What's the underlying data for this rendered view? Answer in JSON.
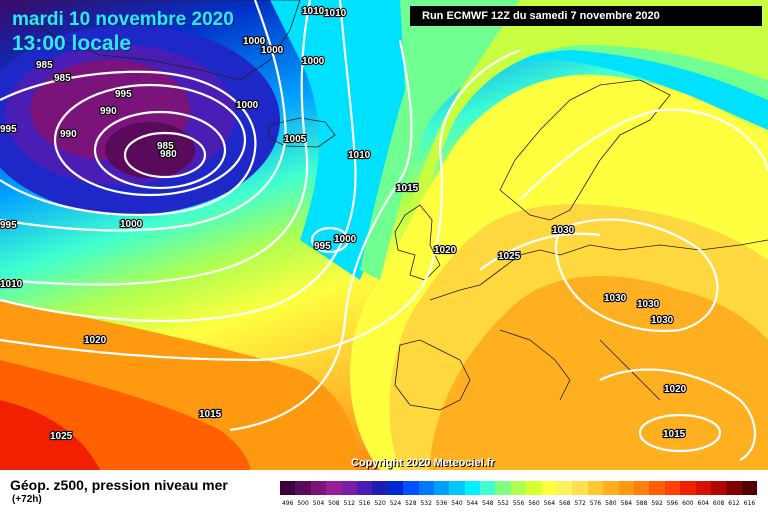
{
  "header": {
    "date_line": "mardi 10 novembre 2020",
    "time_line": "13:00 locale",
    "run_info": "Run ECMWF 12Z du samedi 7 novembre 2020"
  },
  "footer": {
    "copyright": "Copyright 2020 Meteociel.fr",
    "legend_title": "Géop. z500, pression niveau mer",
    "lead_time": "(+72h)"
  },
  "scale": {
    "values": [
      "496",
      "500",
      "504",
      "508",
      "512",
      "516",
      "520",
      "524",
      "528",
      "532",
      "536",
      "540",
      "544",
      "548",
      "552",
      "556",
      "560",
      "564",
      "568",
      "572",
      "576",
      "580",
      "584",
      "588",
      "592",
      "596",
      "600",
      "604",
      "608",
      "612",
      "616"
    ],
    "colors": [
      "#3a003a",
      "#5a0a5a",
      "#7a147a",
      "#961e96",
      "#7a1ea8",
      "#4a1eb4",
      "#1e1eb4",
      "#0028d2",
      "#0050ff",
      "#0078ff",
      "#00a0ff",
      "#00c8ff",
      "#00f0ff",
      "#40ffd0",
      "#80ff80",
      "#b0ff50",
      "#d8ff30",
      "#ffff40",
      "#fff060",
      "#ffe050",
      "#ffc830",
      "#ffb020",
      "#ff9a10",
      "#ff8010",
      "#ff6000",
      "#ff4000",
      "#f02000",
      "#d81000",
      "#b00800",
      "#800000",
      "#500000"
    ]
  },
  "pressure_labels": [
    {
      "text": "1010",
      "id": "p1"
    },
    {
      "text": "1010",
      "id": "p2"
    },
    {
      "text": "985",
      "id": "p3"
    },
    {
      "text": "985",
      "id": "p4"
    },
    {
      "text": "995",
      "id": "p5"
    },
    {
      "text": "990",
      "id": "p6"
    },
    {
      "text": "995",
      "id": "p7"
    },
    {
      "text": "990",
      "id": "p8"
    },
    {
      "text": "985",
      "id": "p9"
    },
    {
      "text": "980",
      "id": "p10"
    },
    {
      "text": "1000",
      "id": "p11"
    },
    {
      "text": "1000",
      "id": "p12"
    },
    {
      "text": "1000",
      "id": "p13"
    },
    {
      "text": "1000",
      "id": "p14"
    },
    {
      "text": "1005",
      "id": "p15"
    },
    {
      "text": "1010",
      "id": "p16"
    },
    {
      "text": "1015",
      "id": "p17"
    },
    {
      "text": "995",
      "id": "p18"
    },
    {
      "text": "1000",
      "id": "p19"
    },
    {
      "text": "1000",
      "id": "p20"
    },
    {
      "text": "995",
      "id": "p21"
    },
    {
      "text": "1010",
      "id": "p22"
    },
    {
      "text": "1020",
      "id": "p23"
    },
    {
      "text": "1025",
      "id": "p24"
    },
    {
      "text": "1030",
      "id": "p25"
    },
    {
      "text": "1030",
      "id": "p26"
    },
    {
      "text": "1030",
      "id": "p27"
    },
    {
      "text": "1030",
      "id": "p28"
    },
    {
      "text": "1020",
      "id": "p29"
    },
    {
      "text": "1015",
      "id": "p30"
    },
    {
      "text": "1025",
      "id": "p31"
    },
    {
      "text": "1020",
      "id": "p32"
    },
    {
      "text": "1015",
      "id": "p33"
    }
  ]
}
